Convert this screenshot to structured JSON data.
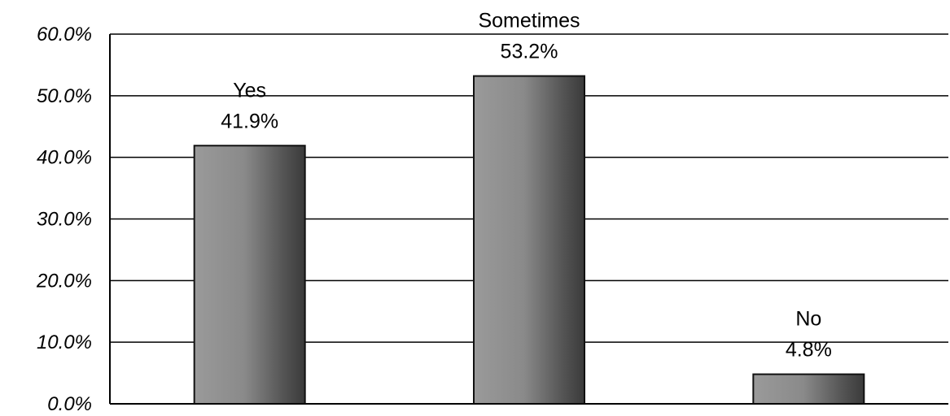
{
  "chart_data": {
    "type": "bar",
    "categories": [
      "Yes",
      "Sometimes",
      "No"
    ],
    "values": [
      41.9,
      53.2,
      4.8
    ],
    "value_labels": [
      "41.9%",
      "53.2%",
      "4.8%"
    ],
    "ylim": [
      0,
      60
    ],
    "yticks": [
      0,
      10,
      20,
      30,
      40,
      50,
      60
    ],
    "ytick_labels": [
      "0.0%",
      "10.0%",
      "20.0%",
      "30.0%",
      "40.0%",
      "50.0%",
      "60.0%"
    ],
    "grid": true,
    "bar_color": "#7a7a7a",
    "bar_edge_color": "#111111"
  }
}
